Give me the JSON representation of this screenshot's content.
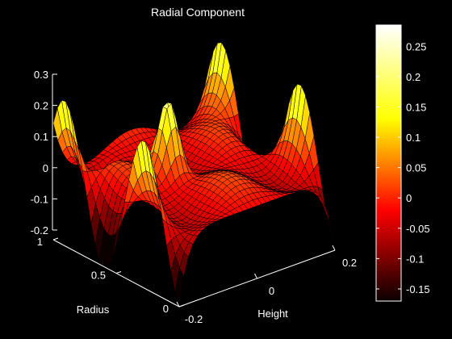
{
  "chart_data": {
    "type": "surface3d",
    "title": "Radial Component",
    "colormap": "hot",
    "background": "#000000",
    "axis_text_color": "#ffffff",
    "grid": false,
    "x_axis": {
      "label": "Height",
      "range": [
        -0.2,
        0.2
      ],
      "ticks": [
        "-0.2",
        "0",
        "0.2"
      ]
    },
    "y_axis": {
      "label": "Radius",
      "range": [
        0,
        1
      ],
      "ticks": [
        "0",
        "0.5",
        "1"
      ]
    },
    "z_axis": {
      "label": "",
      "range": [
        -0.2,
        0.3
      ],
      "ticks": [
        "-0.2",
        "-0.1",
        "0",
        "0.1",
        "0.2",
        "0.3"
      ]
    },
    "colorbar": {
      "placement": "right",
      "range": [
        -0.17,
        0.285
      ],
      "ticks": [
        "-0.15",
        "-0.1",
        "-0.05",
        "0",
        "0.05",
        "0.1",
        "0.15",
        "0.2",
        "0.25"
      ]
    },
    "surface_features": [
      {
        "description_value": "peak",
        "height": 0.26,
        "radius": 0.55
      },
      {
        "description_value": "peak",
        "height": 0.2,
        "radius": 0.5
      },
      {
        "description_value": "peak",
        "height": -0.15,
        "radius": 0.95
      },
      {
        "description_value": "peak",
        "height": 0.0,
        "radius": 0.9
      },
      {
        "description_value": "trough",
        "height": -0.12,
        "radius": 0.75
      }
    ]
  }
}
